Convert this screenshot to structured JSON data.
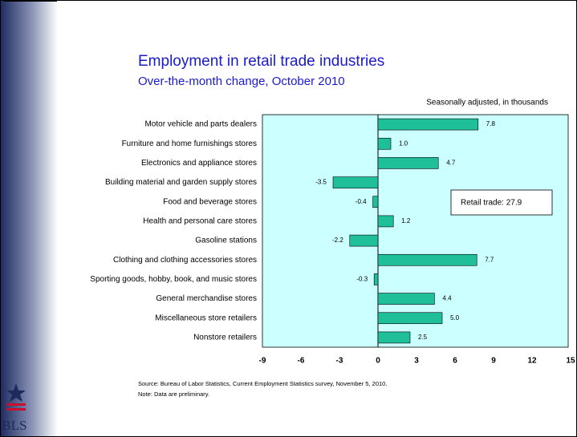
{
  "chart_data": {
    "type": "bar",
    "orientation": "horizontal",
    "title": "Employment in retail trade industries",
    "subtitle": "Over-the-month change, October 2010",
    "unit_note": "Seasonally adjusted, in thousands",
    "categories": [
      "Motor vehicle and parts dealers",
      "Furniture and home furnishings stores",
      "Electronics and appliance stores",
      "Building material and garden supply stores",
      "Food and beverage stores",
      "Health and personal care stores",
      "Gasoline stations",
      "Clothing and clothing accessories stores",
      "Sporting goods, hobby, book, and music stores",
      "General merchandise stores",
      "Miscellaneous store retailers",
      "Nonstore retailers"
    ],
    "values": [
      7.8,
      1,
      4.7,
      -3.5,
      -0.4,
      1.2,
      -2.2,
      7.7,
      -0.3,
      4.4,
      5,
      2.5
    ],
    "value_labels": [
      "7.8",
      "1.0",
      "4.7",
      "-3.5",
      "-0.4",
      "1.2",
      "-2.2",
      "7.7",
      "-0.3",
      "4.4",
      "5.0",
      "2.5"
    ],
    "color": "#1fbf9a",
    "plot_background": "#ccffff",
    "xlim": [
      -9,
      15
    ],
    "xticks": [
      -9,
      -6,
      -3,
      0,
      3,
      6,
      9,
      12,
      15
    ],
    "annotation": "Retail trade: 27.9",
    "source": "Source:  Bureau of Labor Statistics, Current Employment Statistics survey, November 5, 2010.",
    "note": "Note: Data are preliminary.",
    "logo": "BLS"
  }
}
